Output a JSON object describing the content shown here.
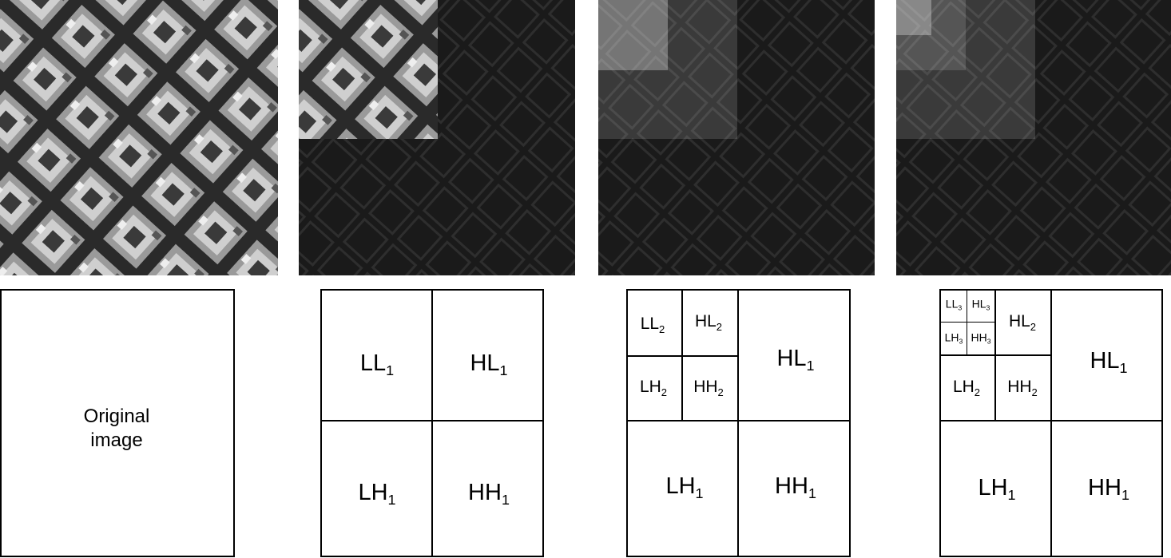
{
  "original_caption": [
    "Original",
    "image"
  ],
  "level1": {
    "ll": {
      "base": "LL",
      "sub": "1"
    },
    "hl": {
      "base": "HL",
      "sub": "1"
    },
    "lh": {
      "base": "LH",
      "sub": "1"
    },
    "hh": {
      "base": "HH",
      "sub": "1"
    }
  },
  "level2": {
    "ll": {
      "base": "LL",
      "sub": "2"
    },
    "hl": {
      "base": "HL",
      "sub": "2"
    },
    "lh": {
      "base": "LH",
      "sub": "2"
    },
    "hh": {
      "base": "HH",
      "sub": "2"
    }
  },
  "level3": {
    "ll": {
      "base": "LL",
      "sub": "3"
    },
    "hl": {
      "base": "HL",
      "sub": "3"
    },
    "lh": {
      "base": "LH",
      "sub": "3"
    },
    "hh": {
      "base": "HH",
      "sub": "3"
    }
  },
  "colors": {
    "photo_dark": "#1c1c1c",
    "line": "#000000",
    "background": "#ffffff"
  }
}
